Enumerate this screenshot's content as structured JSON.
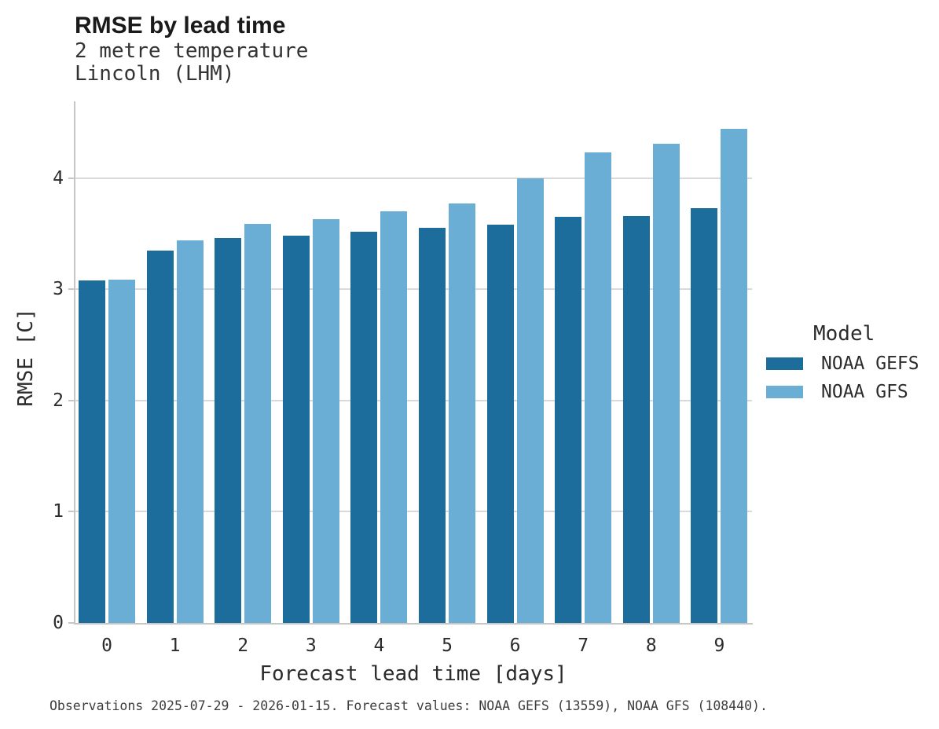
{
  "header": {
    "title": "RMSE by lead time",
    "subtitle_line1": "2 metre temperature",
    "subtitle_line2": "Lincoln (LHM)"
  },
  "chart_data": {
    "type": "bar",
    "title": "RMSE by lead time",
    "subtitle": [
      "2 metre temperature",
      "Lincoln (LHM)"
    ],
    "categories": [
      "0",
      "1",
      "2",
      "3",
      "4",
      "5",
      "6",
      "7",
      "8",
      "9"
    ],
    "series": [
      {
        "name": "NOAA GEFS",
        "color": "#1d6d9c",
        "values": [
          3.08,
          3.35,
          3.46,
          3.48,
          3.52,
          3.55,
          3.58,
          3.65,
          3.66,
          3.73
        ]
      },
      {
        "name": "NOAA GFS",
        "color": "#6aaed6",
        "values": [
          3.09,
          3.44,
          3.59,
          3.63,
          3.7,
          3.77,
          4.0,
          4.23,
          4.31,
          4.44
        ]
      }
    ],
    "xlabel": "Forecast lead time [days]",
    "ylabel": "RMSE [C]",
    "ylim": [
      0,
      4.69
    ],
    "yticks": [
      0,
      1,
      2,
      3,
      4
    ],
    "grid": true,
    "legend_title": "Model",
    "legend_position": "right"
  },
  "legend": {
    "title": "Model",
    "entries": [
      {
        "label": "NOAA GEFS",
        "color": "#1d6d9c"
      },
      {
        "label": "NOAA GFS",
        "color": "#6aaed6"
      }
    ]
  },
  "footer": {
    "note": "Observations 2025-07-29 - 2026-01-15. Forecast values: NOAA GEFS (13559), NOAA GFS (108440)."
  },
  "colors": {
    "gefs_bar": "#1d6d9c",
    "gfs_bar": "#6aaed6",
    "gridline": "#d9d9d9",
    "axis": "#c6c6c6",
    "text": "#2b2b2b"
  }
}
